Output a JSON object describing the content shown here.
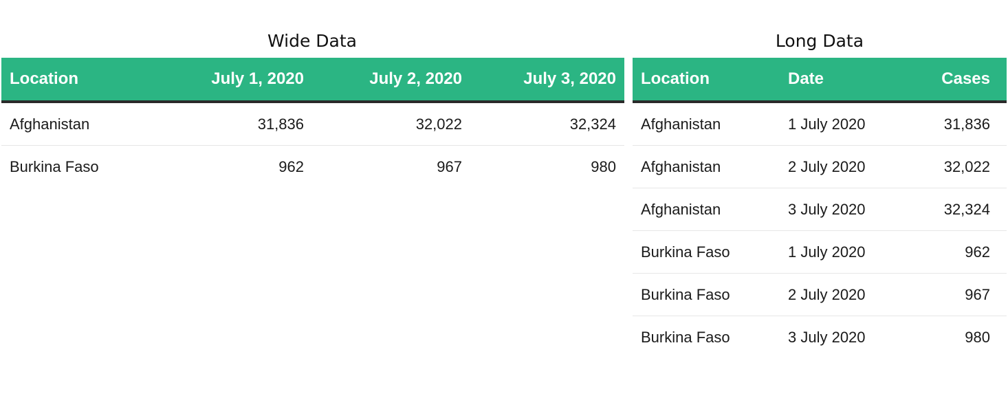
{
  "wide": {
    "title": "Wide Data",
    "columns": [
      "Location",
      "July 1, 2020",
      "July 2, 2020",
      "July 3, 2020"
    ],
    "rows": [
      [
        "Afghanistan",
        "31,836",
        "32,022",
        "32,324"
      ],
      [
        "Burkina Faso",
        "962",
        "967",
        "980"
      ]
    ]
  },
  "long": {
    "title": "Long Data",
    "columns": [
      "Location",
      "Date",
      "Cases"
    ],
    "rows": [
      [
        "Afghanistan",
        "1 July 2020",
        "31,836"
      ],
      [
        "Afghanistan",
        "2 July 2020",
        "32,022"
      ],
      [
        "Afghanistan",
        "3 July 2020",
        "32,324"
      ],
      [
        "Burkina Faso",
        "1 July 2020",
        "962"
      ],
      [
        "Burkina Faso",
        "2 July 2020",
        "967"
      ],
      [
        "Burkina Faso",
        "3 July 2020",
        "980"
      ]
    ]
  },
  "colors": {
    "header_bg": "#2bb583",
    "header_text": "#ffffff",
    "header_rule": "#2a2a2a",
    "row_rule": "#e6e6e6"
  }
}
